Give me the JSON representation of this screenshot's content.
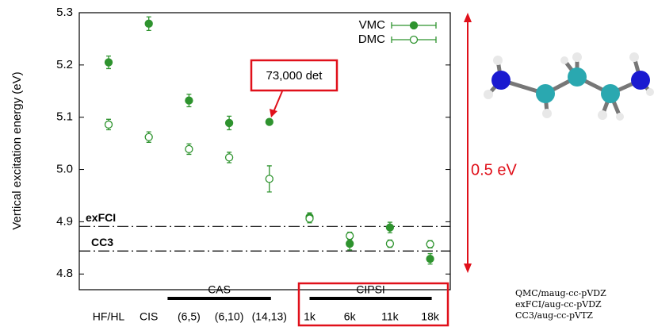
{
  "chart_data": {
    "type": "errorbar",
    "y_label": "Vertical excitation energy (eV)",
    "categories": [
      "HF/HL",
      "CIS",
      "(6,5)",
      "(6,10)",
      "(14,13)",
      "1k",
      "6k",
      "11k",
      "18k"
    ],
    "series": [
      {
        "name": "VMC",
        "color": "#2e932e",
        "marker": "filled",
        "values": [
          5.205,
          5.279,
          5.132,
          5.089,
          5.091,
          4.909,
          4.858,
          4.889,
          4.829
        ],
        "errors": [
          0.012,
          0.013,
          0.012,
          0.013,
          0.005,
          0.008,
          0.012,
          0.01,
          0.01
        ]
      },
      {
        "name": "DMC",
        "color": "#2e932e",
        "marker": "open",
        "values": [
          5.086,
          5.062,
          5.039,
          5.023,
          4.982,
          4.906,
          4.873,
          4.858,
          4.857
        ],
        "errors": [
          0.01,
          0.01,
          0.01,
          0.01,
          0.025,
          0.008,
          0.007,
          0.007,
          0.007
        ]
      }
    ],
    "reference_lines": [
      {
        "label": "exFCI",
        "value": 4.891
      },
      {
        "label": "CC3",
        "value": 4.844
      }
    ],
    "groups": [
      {
        "label": "CAS"
      },
      {
        "label": "CIPSI"
      }
    ],
    "annotation": "73,000 det",
    "range_label": "0.5 eV",
    "notes": [
      "QMC/maug-cc-pVDZ",
      "exFCI/aug-cc-pVDZ",
      "CC3/aug-cc-pVTZ"
    ],
    "ylim": [
      4.77,
      5.3
    ],
    "yticks": [
      5.3,
      5.2,
      5.1,
      {
        "value": 5,
        "label": "5.0"
      },
      4.9,
      4.8
    ],
    "legend": "top-right"
  }
}
